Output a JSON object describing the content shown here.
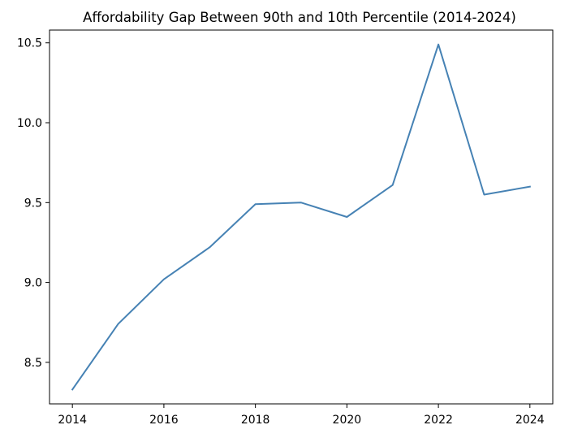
{
  "chart_data": {
    "type": "line",
    "title": "Affordability Gap Between 90th and 10th Percentile (2014-2024)",
    "xlabel": "",
    "ylabel": "",
    "x": [
      2014,
      2015,
      2016,
      2017,
      2018,
      2019,
      2020,
      2021,
      2022,
      2023,
      2024
    ],
    "series": [
      {
        "values": [
          8.33,
          8.74,
          9.02,
          9.22,
          9.49,
          9.5,
          9.41,
          9.61,
          10.49,
          9.55,
          9.6
        ],
        "color": "#4682b4"
      }
    ],
    "xlim": [
      2013.5,
      2024.5
    ],
    "ylim": [
      8.24,
      10.58
    ],
    "xticks": [
      2014,
      2016,
      2018,
      2020,
      2022,
      2024
    ],
    "yticks": [
      8.5,
      9.0,
      9.5,
      10.0,
      10.5
    ],
    "xtick_labels": [
      "2014",
      "2016",
      "2018",
      "2020",
      "2022",
      "2024"
    ],
    "ytick_labels": [
      "8.5",
      "9.0",
      "9.5",
      "10.0",
      "10.5"
    ],
    "grid": false,
    "legend": "none"
  }
}
